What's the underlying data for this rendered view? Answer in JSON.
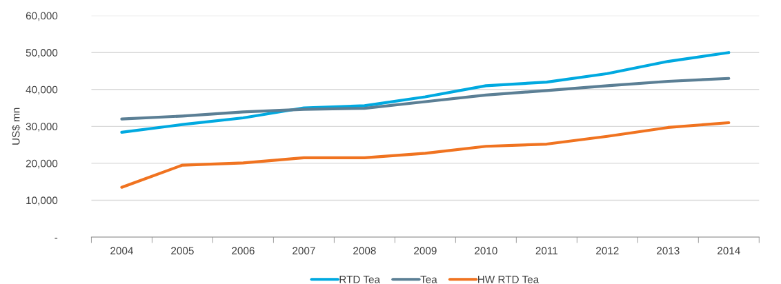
{
  "chart_data": {
    "type": "line",
    "ylabel": "US$ mn",
    "categories": [
      "2004",
      "2005",
      "2006",
      "2007",
      "2008",
      "2009",
      "2010",
      "2011",
      "2012",
      "2013",
      "2014"
    ],
    "series": [
      {
        "name": "RTD Tea",
        "color": "#00a9e0",
        "values": [
          28400,
          30500,
          32300,
          35000,
          35600,
          38000,
          41000,
          42000,
          44300,
          47600,
          50000
        ]
      },
      {
        "name": "Tea",
        "color": "#5b7f95",
        "values": [
          32000,
          32800,
          33900,
          34600,
          34900,
          36700,
          38500,
          39700,
          41000,
          42200,
          43000
        ]
      },
      {
        "name": "HW RTD Tea",
        "color": "#f07320",
        "values": [
          13500,
          19500,
          20100,
          21500,
          21500,
          22700,
          24600,
          25200,
          27300,
          29700,
          31000
        ]
      }
    ],
    "ylim": [
      0,
      60000
    ],
    "yticks": [
      {
        "value": 0,
        "label": "-"
      },
      {
        "value": 10000,
        "label": "10,000"
      },
      {
        "value": 20000,
        "label": "20,000"
      },
      {
        "value": 30000,
        "label": "30,000"
      },
      {
        "value": 40000,
        "label": "40,000"
      },
      {
        "value": 50000,
        "label": "50,000"
      },
      {
        "value": 60000,
        "label": "60,000"
      }
    ],
    "grid": "y",
    "legend": "bottom",
    "marker": "none",
    "line_style": "solid"
  }
}
